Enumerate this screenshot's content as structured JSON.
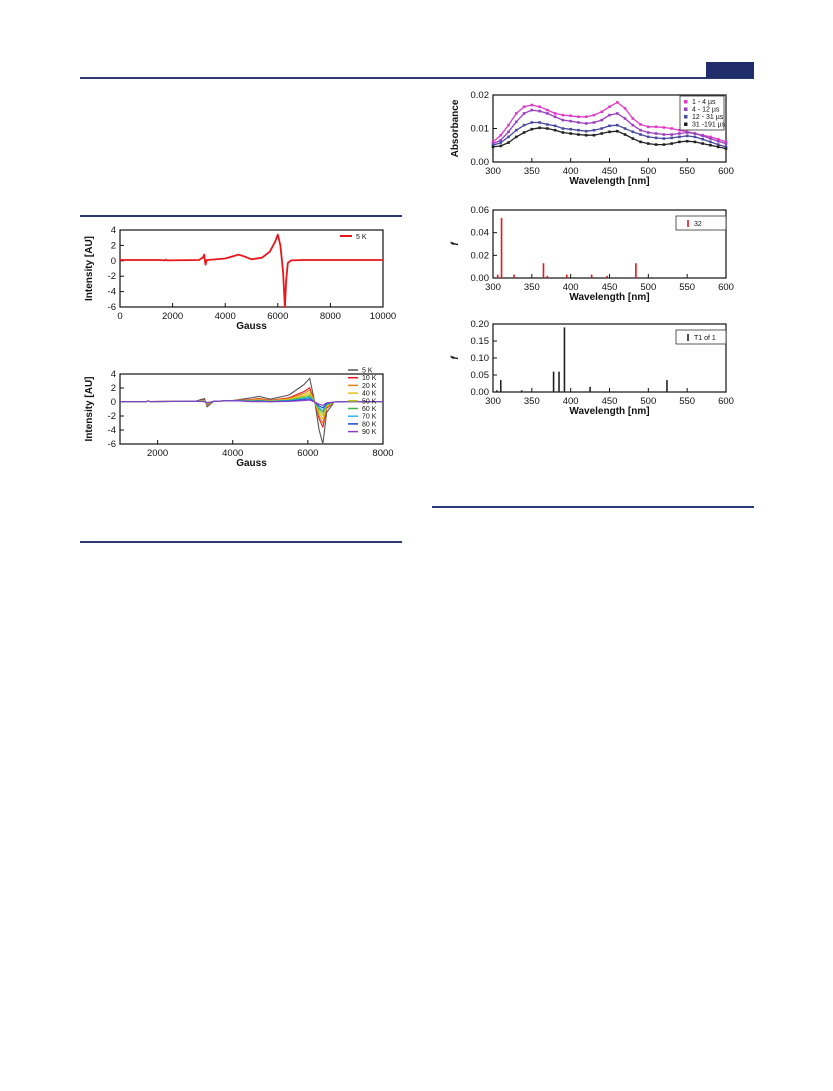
{
  "charts": [
    {
      "id": "epr5",
      "type": "line",
      "xlabel": "Gauss",
      "ylabel": "Intensity [AU]",
      "xlim": [
        0,
        10000
      ],
      "ylim": [
        -6,
        4
      ],
      "xticks": [
        0,
        2000,
        4000,
        6000,
        8000,
        10000
      ],
      "yticks": [
        -6,
        -4,
        -2,
        0,
        2,
        4
      ],
      "legend": "top-right",
      "series": [
        {
          "name": "5 K",
          "color": "#e8151b",
          "x": [
            0,
            1500,
            1700,
            1750,
            1800,
            3000,
            3150,
            3200,
            3250,
            3300,
            3500,
            4000,
            4300,
            4500,
            4700,
            5000,
            5400,
            5700,
            5900,
            6000,
            6100,
            6200,
            6270,
            6320,
            6380,
            6500,
            7000,
            8000,
            10000
          ],
          "y": [
            0.1,
            0.1,
            0.05,
            0.15,
            0.05,
            0.1,
            0.4,
            0.8,
            -0.5,
            0.1,
            0.15,
            0.3,
            0.6,
            0.8,
            0.6,
            0.2,
            0.4,
            1.2,
            2.5,
            3.4,
            2.0,
            -1.5,
            -6.0,
            -2.5,
            -0.3,
            0.05,
            0.1,
            0.1,
            0.1
          ]
        }
      ]
    },
    {
      "id": "eprT",
      "type": "line",
      "xlabel": "Gauss",
      "ylabel": "Intensity [AU]",
      "xlim": [
        1000,
        8000
      ],
      "ylim": [
        -6,
        4
      ],
      "xticks": [
        2000,
        4000,
        6000,
        8000
      ],
      "yticks": [
        -6,
        -4,
        -2,
        0,
        2,
        4
      ],
      "legend": "top-right",
      "series": [
        {
          "name": "5 K",
          "color": "#555555",
          "scale": 1.0
        },
        {
          "name": "10 K",
          "color": "#e8151b",
          "scale": 0.6
        },
        {
          "name": "20 K",
          "color": "#e0801a",
          "scale": 0.5
        },
        {
          "name": "40 K",
          "color": "#e6c21a",
          "scale": 0.4
        },
        {
          "name": "50 K",
          "color": "#b5c41a",
          "scale": 0.32
        },
        {
          "name": "60 K",
          "color": "#3bb54a",
          "scale": 0.25
        },
        {
          "name": "70 K",
          "color": "#28b8e8",
          "scale": 0.2
        },
        {
          "name": "80 K",
          "color": "#2546c8",
          "scale": 0.14
        },
        {
          "name": "90 K",
          "color": "#8a3ec4",
          "scale": 0.08
        }
      ],
      "shape": {
        "x": [
          1000,
          1700,
          1750,
          1800,
          3000,
          3250,
          3320,
          3400,
          3500,
          4000,
          4500,
          4700,
          5000,
          5500,
          5900,
          6050,
          6200,
          6300,
          6400,
          6500,
          6700,
          7000,
          8000
        ],
        "y": [
          0.05,
          0.05,
          0.15,
          0.05,
          0.1,
          0.5,
          -0.7,
          -0.3,
          0.1,
          0.2,
          0.6,
          0.8,
          0.4,
          1.0,
          2.5,
          3.4,
          -0.5,
          -4.0,
          -6.0,
          -1.5,
          0.0,
          0.05,
          0.05
        ]
      }
    },
    {
      "id": "tas",
      "type": "line",
      "xlabel": "Wavelength [nm]",
      "ylabel": "Absorbance",
      "xlim": [
        300,
        600
      ],
      "ylim": [
        0.0,
        0.02
      ],
      "xticks": [
        300,
        350,
        400,
        450,
        500,
        550,
        600
      ],
      "yticks": [
        0.0,
        0.01,
        0.02
      ],
      "ytick_labels": [
        "0.00",
        "0.01",
        "0.02"
      ],
      "legend": "top-right",
      "x": [
        300,
        310,
        320,
        330,
        340,
        350,
        360,
        370,
        380,
        390,
        400,
        410,
        420,
        430,
        440,
        450,
        460,
        470,
        480,
        490,
        500,
        510,
        520,
        530,
        540,
        550,
        560,
        570,
        580,
        590,
        600
      ],
      "series": [
        {
          "name": "1 - 4 µs",
          "color": "#e23ac8",
          "y": [
            0.006,
            0.008,
            0.011,
            0.0145,
            0.0165,
            0.017,
            0.0165,
            0.0155,
            0.0145,
            0.014,
            0.0138,
            0.0135,
            0.0135,
            0.014,
            0.015,
            0.0165,
            0.0178,
            0.016,
            0.013,
            0.0112,
            0.0105,
            0.0105,
            0.0103,
            0.01,
            0.0095,
            0.009,
            0.0085,
            0.008,
            0.0075,
            0.0068,
            0.006
          ]
        },
        {
          "name": "4 - 12 µs",
          "color": "#9b3ec0",
          "y": [
            0.0055,
            0.0065,
            0.009,
            0.012,
            0.0145,
            0.0155,
            0.0152,
            0.0145,
            0.0135,
            0.0125,
            0.0122,
            0.0118,
            0.0115,
            0.0118,
            0.0125,
            0.014,
            0.0145,
            0.013,
            0.011,
            0.0095,
            0.0088,
            0.0085,
            0.0082,
            0.0082,
            0.0085,
            0.0088,
            0.0085,
            0.0078,
            0.007,
            0.0062,
            0.0055
          ]
        },
        {
          "name": "12 - 31 µs",
          "color": "#4a4aa0",
          "y": [
            0.005,
            0.0058,
            0.0075,
            0.0095,
            0.011,
            0.0118,
            0.0118,
            0.0112,
            0.0108,
            0.01,
            0.0098,
            0.0095,
            0.0092,
            0.0095,
            0.01,
            0.0108,
            0.011,
            0.01,
            0.009,
            0.0082,
            0.0075,
            0.0072,
            0.007,
            0.0072,
            0.0075,
            0.0078,
            0.0075,
            0.0068,
            0.006,
            0.0052,
            0.0045
          ]
        },
        {
          "name": "31 -191 µs",
          "color": "#222222",
          "y": [
            0.0045,
            0.0048,
            0.0058,
            0.0075,
            0.0088,
            0.0098,
            0.0102,
            0.01,
            0.0095,
            0.0088,
            0.0085,
            0.0082,
            0.008,
            0.008,
            0.0085,
            0.009,
            0.0092,
            0.0082,
            0.007,
            0.006,
            0.0055,
            0.0052,
            0.0052,
            0.0055,
            0.006,
            0.0062,
            0.006,
            0.0055,
            0.005,
            0.0045,
            0.004
          ]
        }
      ]
    },
    {
      "id": "stick1",
      "type": "bar",
      "xlabel": "Wavelength [nm]",
      "ylabel": "f",
      "xlim": [
        300,
        600
      ],
      "ylim": [
        0.0,
        0.06
      ],
      "xticks": [
        300,
        350,
        400,
        450,
        500,
        550,
        600
      ],
      "yticks": [
        0.0,
        0.02,
        0.04,
        0.06
      ],
      "ytick_labels": [
        "0.00",
        "0.02",
        "0.04",
        "0.06"
      ],
      "legend": "top-right",
      "series": [
        {
          "name": "32",
          "color": "#e8151b",
          "x": [
            306,
            311,
            327,
            365,
            370,
            395,
            427,
            447,
            484
          ],
          "y": [
            0.003,
            0.053,
            0.003,
            0.013,
            0.002,
            0.003,
            0.003,
            0.002,
            0.013
          ]
        }
      ]
    },
    {
      "id": "stick2",
      "type": "bar",
      "xlabel": "Wavelength [nm]",
      "ylabel": "f",
      "xlim": [
        300,
        600
      ],
      "ylim": [
        0.0,
        0.2
      ],
      "xticks": [
        300,
        350,
        400,
        450,
        500,
        550,
        600
      ],
      "yticks": [
        0.0,
        0.05,
        0.1,
        0.15,
        0.2
      ],
      "ytick_labels": [
        "0.00",
        "0.05",
        "0.10",
        "0.15",
        "0.20"
      ],
      "legend": "top-right",
      "series": [
        {
          "name": "T1 of 1",
          "color": "#222222",
          "x": [
            305,
            310,
            337,
            378,
            385,
            392,
            425,
            524
          ],
          "y": [
            0.005,
            0.035,
            0.005,
            0.06,
            0.06,
            0.19,
            0.015,
            0.035
          ]
        }
      ]
    }
  ],
  "chart_data": [
    {
      "type": "line",
      "title": "",
      "xlabel": "Gauss",
      "ylabel": "Intensity [AU]",
      "xlim": [
        0,
        10000
      ],
      "ylim": [
        -6,
        4
      ],
      "series": [
        {
          "name": "5 K"
        }
      ]
    },
    {
      "type": "line",
      "title": "",
      "xlabel": "Gauss",
      "ylabel": "Intensity [AU]",
      "xlim": [
        1000,
        8000
      ],
      "ylim": [
        -6,
        4
      ],
      "series": [
        {
          "name": "5 K"
        },
        {
          "name": "10 K"
        },
        {
          "name": "20 K"
        },
        {
          "name": "40 K"
        },
        {
          "name": "50 K"
        },
        {
          "name": "60 K"
        },
        {
          "name": "70 K"
        },
        {
          "name": "80 K"
        },
        {
          "name": "90 K"
        }
      ]
    },
    {
      "type": "line",
      "title": "",
      "xlabel": "Wavelength [nm]",
      "ylabel": "Absorbance",
      "xlim": [
        300,
        600
      ],
      "ylim": [
        0.0,
        0.02
      ],
      "series": [
        {
          "name": "1 - 4 µs"
        },
        {
          "name": "4 - 12 µs"
        },
        {
          "name": "12 - 31 µs"
        },
        {
          "name": "31 -191 µs"
        }
      ]
    },
    {
      "type": "bar",
      "title": "",
      "xlabel": "Wavelength [nm]",
      "ylabel": "f",
      "xlim": [
        300,
        600
      ],
      "ylim": [
        0.0,
        0.06
      ],
      "series": [
        {
          "name": "32"
        }
      ]
    },
    {
      "type": "bar",
      "title": "",
      "xlabel": "Wavelength [nm]",
      "ylabel": "f",
      "xlim": [
        300,
        600
      ],
      "ylim": [
        0.0,
        0.2
      ],
      "series": [
        {
          "name": "T1 of 1"
        }
      ]
    }
  ]
}
